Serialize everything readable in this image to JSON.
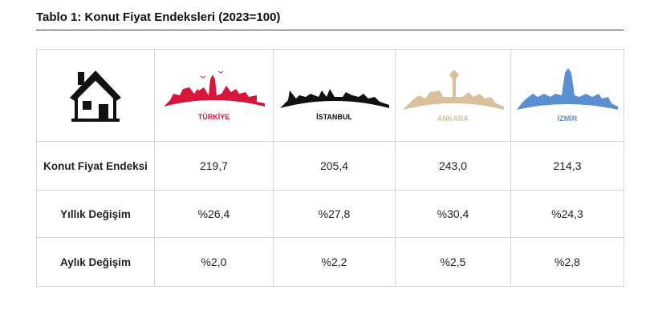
{
  "title": "Tablo 1: Konut Fiyat Endeksleri (2023=100)",
  "cities": [
    {
      "name": "TÜRKİYE",
      "color": "#d6163a"
    },
    {
      "name": "İSTANBUL",
      "color": "#111111"
    },
    {
      "name": "ANKARA",
      "color": "#d8c09a"
    },
    {
      "name": "İZMİR",
      "color": "#5a8fd0"
    }
  ],
  "rows": [
    {
      "label": "Konut Fiyat Endeksi",
      "values": [
        "219,7",
        "205,4",
        "243,0",
        "214,3"
      ]
    },
    {
      "label": "Yıllık Değişim",
      "values": [
        "%26,4",
        "%27,8",
        "%30,4",
        "%24,3"
      ]
    },
    {
      "label": "Aylık Değişim",
      "values": [
        "%2,0",
        "%2,2",
        "%2,5",
        "%2,8"
      ]
    }
  ]
}
